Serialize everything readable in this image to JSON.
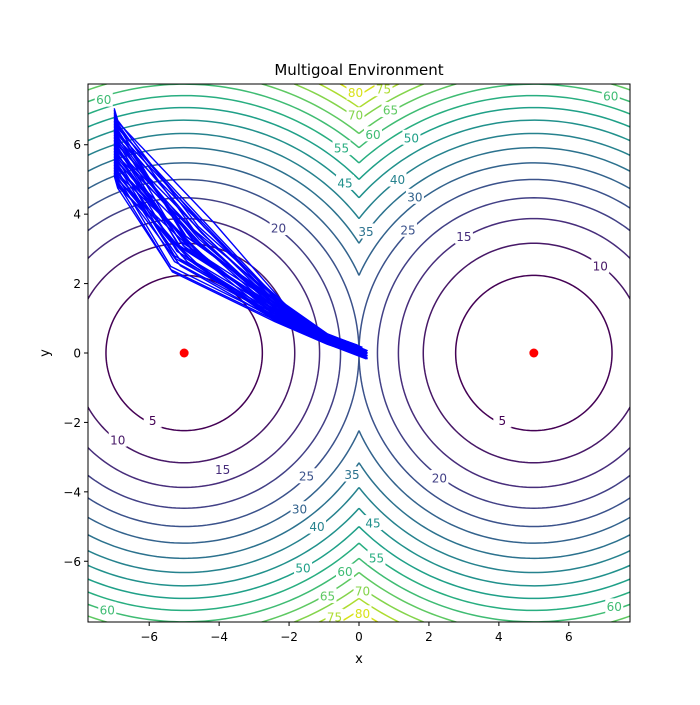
{
  "chart_data": {
    "type": "contour",
    "title": "Multigoal Environment",
    "xlabel": "x",
    "ylabel": "y",
    "xlim": [
      -7.75,
      7.75
    ],
    "ylim": [
      -7.75,
      7.75
    ],
    "x_ticks": [
      -6,
      -4,
      -2,
      0,
      2,
      4,
      6
    ],
    "y_ticks": [
      -6,
      -4,
      -2,
      0,
      2,
      4,
      6
    ],
    "x_tick_labels": [
      "−6",
      "−4",
      "−2",
      "0",
      "2",
      "4",
      "6"
    ],
    "y_tick_labels": [
      "−6",
      "−4",
      "−2",
      "0",
      "2",
      "4",
      "6"
    ],
    "goals": [
      {
        "x": -5,
        "y": 0
      },
      {
        "x": 5,
        "y": 0
      }
    ],
    "goal_color": "#ff0000",
    "trajectory_color": "#0000ff",
    "contour_levels": [
      5,
      10,
      15,
      20,
      25,
      30,
      35,
      40,
      45,
      50,
      55,
      60,
      65,
      70,
      75,
      80
    ],
    "contour_colors": [
      "#440154",
      "#471867",
      "#472d7b",
      "#424086",
      "#3b528b",
      "#33638d",
      "#2c728e",
      "#26828e",
      "#21918c",
      "#1fa088",
      "#28ae80",
      "#3fbc73",
      "#5ec962",
      "#84d44b",
      "#addc30",
      "#d8e219"
    ],
    "contour_labels": [
      {
        "text": "5",
        "x": -5.9,
        "y": -1.95
      },
      {
        "text": "5",
        "x": 4.1,
        "y": -1.95
      },
      {
        "text": "10",
        "x": -6.9,
        "y": -2.5
      },
      {
        "text": "10",
        "x": 6.9,
        "y": 2.5
      },
      {
        "text": "15",
        "x": -3.9,
        "y": -3.35
      },
      {
        "text": "15",
        "x": 3.0,
        "y": 3.35
      },
      {
        "text": "20",
        "x": -2.3,
        "y": 3.6
      },
      {
        "text": "20",
        "x": 2.3,
        "y": -3.6
      },
      {
        "text": "25",
        "x": 1.4,
        "y": 3.55
      },
      {
        "text": "25",
        "x": -1.5,
        "y": -3.55
      },
      {
        "text": "30",
        "x": 1.6,
        "y": 4.5
      },
      {
        "text": "30",
        "x": -1.7,
        "y": -4.5
      },
      {
        "text": "35",
        "x": 0.2,
        "y": 3.5
      },
      {
        "text": "35",
        "x": -0.2,
        "y": -3.5
      },
      {
        "text": "40",
        "x": 1.1,
        "y": 5.0
      },
      {
        "text": "40",
        "x": -1.2,
        "y": -5.0
      },
      {
        "text": "45",
        "x": -0.4,
        "y": 4.9
      },
      {
        "text": "45",
        "x": 0.4,
        "y": -4.9
      },
      {
        "text": "50",
        "x": 1.5,
        "y": 6.2
      },
      {
        "text": "50",
        "x": -1.6,
        "y": -6.2
      },
      {
        "text": "55",
        "x": -0.5,
        "y": 5.9
      },
      {
        "text": "55",
        "x": 0.5,
        "y": -5.9
      },
      {
        "text": "60",
        "x": -7.3,
        "y": 7.3
      },
      {
        "text": "60",
        "x": 0.4,
        "y": 6.3
      },
      {
        "text": "60",
        "x": 7.2,
        "y": 7.4
      },
      {
        "text": "60",
        "x": -0.4,
        "y": -6.3
      },
      {
        "text": "60",
        "x": -7.2,
        "y": -7.4
      },
      {
        "text": "60",
        "x": 7.3,
        "y": -7.3
      },
      {
        "text": "65",
        "x": 0.9,
        "y": 7.0
      },
      {
        "text": "65",
        "x": -0.9,
        "y": -7.0
      },
      {
        "text": "70",
        "x": -0.1,
        "y": 6.85
      },
      {
        "text": "70",
        "x": 0.1,
        "y": -6.85
      },
      {
        "text": "75",
        "x": 0.7,
        "y": 7.6
      },
      {
        "text": "75",
        "x": -0.7,
        "y": -7.6
      },
      {
        "text": "80",
        "x": -0.1,
        "y": 7.5
      },
      {
        "text": "80",
        "x": 0.1,
        "y": -7.5
      }
    ],
    "trajectory_bundle": {
      "count": 44,
      "start_x": -7.0,
      "start_y_min": 5.1,
      "start_y_max": 7.05,
      "end_x_min": -0.05,
      "end_x_max": 0.25,
      "end_y_min": -0.2,
      "end_y_max": 0.25
    },
    "grid": false,
    "legend": "none"
  }
}
